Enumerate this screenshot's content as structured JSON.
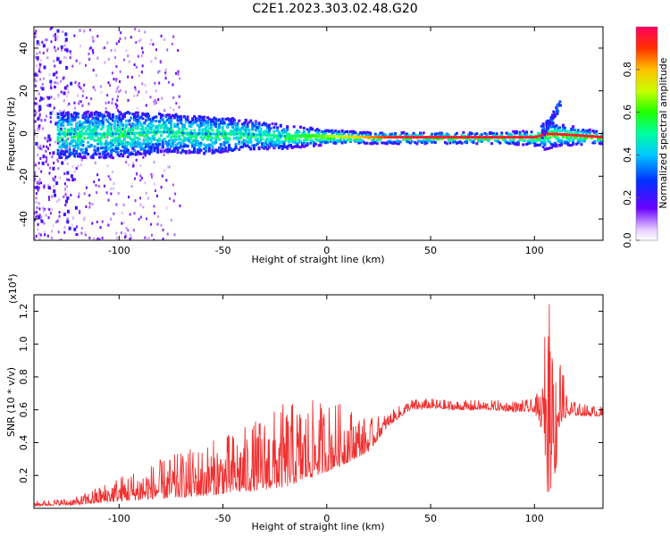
{
  "title": "C2E1.2023.303.02.48.G20",
  "chart_data": [
    {
      "type": "heatmap",
      "xlabel": "Height of straight line (km)",
      "ylabel": "Frequency (Hz)",
      "xlim": [
        -141,
        133
      ],
      "ylim": [
        -50,
        50
      ],
      "x_ticks": [
        -100,
        -50,
        0,
        50,
        100
      ],
      "y_ticks": [
        -40,
        -20,
        0,
        20,
        40
      ],
      "colorbar": {
        "label": "Normalized spectral amplitude",
        "range": [
          0.0,
          1.0
        ],
        "ticks": [
          "0.0",
          "0.2",
          "0.4",
          "0.6",
          "0.8"
        ],
        "tick_values": [
          0.0,
          0.2,
          0.4,
          0.6,
          0.8
        ]
      },
      "trace": {
        "description_points_x": [
          -125,
          -100,
          -80,
          -60,
          -40,
          -20,
          0,
          20,
          40,
          60,
          80,
          100,
          105,
          110,
          133
        ],
        "center_freq_hz": [
          0,
          0,
          1,
          0,
          0,
          -1,
          -1,
          -1.5,
          -1.5,
          -1.5,
          -1.5,
          -1.5,
          0,
          0,
          -1.5
        ],
        "spread_hz": [
          6,
          6,
          5,
          5,
          4,
          3,
          2,
          1.5,
          1.5,
          1.5,
          1.5,
          2,
          4,
          3,
          1.5
        ]
      }
    },
    {
      "type": "line",
      "xlabel": "Height of straight line (km)",
      "ylabel": "SNR (10 * v/v)",
      "y_multiplier_label": "(x10",
      "y_multiplier_exp": "4",
      "y_multiplier_close": ")",
      "xlim": [
        -141,
        133
      ],
      "ylim": [
        0,
        13000
      ],
      "x_ticks": [
        -100,
        -50,
        0,
        50,
        100
      ],
      "y_ticks": [
        2000,
        4000,
        6000,
        8000,
        10000,
        12000
      ],
      "y_tick_labels": [
        "0.2",
        "0.4",
        "0.6",
        "0.8",
        "1.0",
        "1.2"
      ],
      "color": "#f03030",
      "envelope": {
        "x": [
          -141,
          -120,
          -100,
          -80,
          -60,
          -40,
          -20,
          0,
          10,
          20,
          30,
          40,
          50,
          60,
          70,
          80,
          90,
          100,
          104,
          107,
          108,
          110,
          112,
          115,
          120,
          133
        ],
        "mean": [
          200,
          300,
          700,
          1000,
          1300,
          1700,
          2200,
          3000,
          3400,
          3800,
          5200,
          6100,
          6200,
          6100,
          6100,
          6100,
          6000,
          6000,
          5200,
          6500,
          6000,
          5500,
          6000,
          5800,
          5800,
          5700
        ],
        "amp": [
          150,
          250,
          800,
          1200,
          1600,
          2000,
          2600,
          2200,
          1800,
          1000,
          400,
          350,
          300,
          300,
          300,
          300,
          350,
          400,
          1500,
          6500,
          5000,
          4000,
          2500,
          800,
          400,
          300
        ]
      }
    }
  ]
}
